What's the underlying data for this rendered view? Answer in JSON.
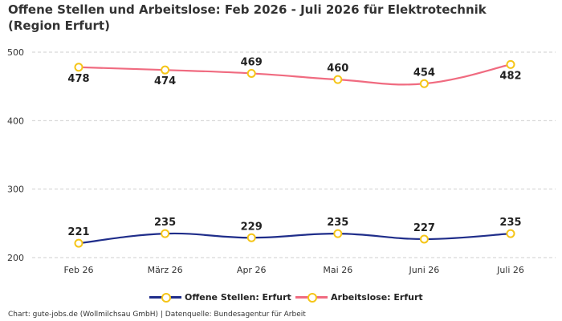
{
  "title": "Offene Stellen und Arbeitslose: Feb 2026 - Juli 2026 für Elektrotechnik (Region Erfurt)",
  "footer": "Chart: gute-jobs.de (Wollmilchsau GmbH) | Datenquelle: Bundesagentur für Arbeit",
  "colors": {
    "offene": "#1f2d8a",
    "arbeitslose": "#f06b80",
    "marker": "#f5c518",
    "grid": "#cfcfcf"
  },
  "chart_data": {
    "type": "line",
    "title": "Offene Stellen und Arbeitslose: Feb 2026 - Juli 2026 für Elektrotechnik (Region Erfurt)",
    "categories": [
      "Feb 26",
      "März 26",
      "Apr 26",
      "Mai 26",
      "Juni 26",
      "Juli 26"
    ],
    "series": [
      {
        "name": "Offene Stellen: Erfurt",
        "color": "#1f2d8a",
        "values": [
          221,
          235,
          229,
          235,
          227,
          235
        ]
      },
      {
        "name": "Arbeitslose: Erfurt",
        "color": "#f06b80",
        "values": [
          478,
          474,
          469,
          460,
          454,
          482
        ]
      }
    ],
    "yticks": [
      200,
      300,
      400,
      500
    ],
    "ylim": [
      200,
      500
    ],
    "grid": true,
    "legend": "bottom",
    "xlabel": "",
    "ylabel": ""
  }
}
